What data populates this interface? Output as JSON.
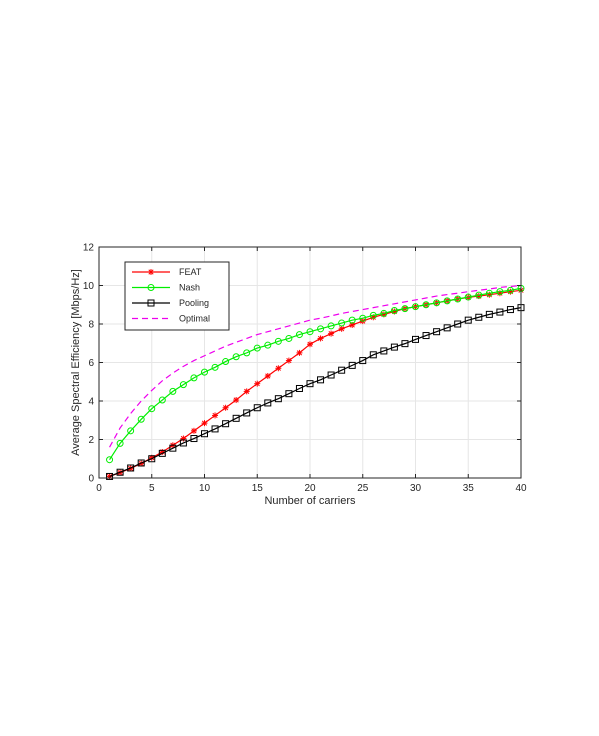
{
  "chart_data": {
    "type": "line",
    "xlabel": "Number of carriers",
    "ylabel": "Average Spectral Efficiency [Mbps/Hz]",
    "xlim": [
      0,
      40
    ],
    "ylim": [
      0,
      12
    ],
    "x_ticks": [
      0,
      5,
      10,
      15,
      20,
      25,
      30,
      35,
      40
    ],
    "y_ticks": [
      0,
      2,
      4,
      6,
      8,
      10,
      12
    ],
    "grid": true,
    "legend_position": "top-left",
    "x": [
      1,
      2,
      3,
      4,
      5,
      6,
      7,
      8,
      9,
      10,
      11,
      12,
      13,
      14,
      15,
      16,
      17,
      18,
      19,
      20,
      21,
      22,
      23,
      24,
      25,
      26,
      27,
      28,
      29,
      30,
      31,
      32,
      33,
      34,
      35,
      36,
      37,
      38,
      39,
      40
    ],
    "series": [
      {
        "name": "FEAT",
        "color": "#ff0000",
        "marker": "asterisk",
        "dash": "solid",
        "values": [
          0.08,
          0.28,
          0.5,
          0.75,
          1.05,
          1.35,
          1.7,
          2.05,
          2.45,
          2.85,
          3.25,
          3.65,
          4.05,
          4.5,
          4.9,
          5.3,
          5.7,
          6.1,
          6.5,
          6.95,
          7.25,
          7.5,
          7.75,
          7.95,
          8.15,
          8.35,
          8.5,
          8.65,
          8.8,
          8.9,
          9.0,
          9.1,
          9.2,
          9.3,
          9.38,
          9.45,
          9.52,
          9.6,
          9.68,
          9.75
        ]
      },
      {
        "name": "Nash",
        "color": "#00ee00",
        "marker": "circle",
        "dash": "solid",
        "values": [
          0.95,
          1.8,
          2.45,
          3.05,
          3.6,
          4.05,
          4.5,
          4.85,
          5.2,
          5.5,
          5.75,
          6.05,
          6.3,
          6.5,
          6.75,
          6.9,
          7.1,
          7.25,
          7.45,
          7.6,
          7.75,
          7.9,
          8.05,
          8.2,
          8.3,
          8.45,
          8.55,
          8.7,
          8.8,
          8.9,
          9.0,
          9.1,
          9.2,
          9.3,
          9.4,
          9.5,
          9.6,
          9.68,
          9.75,
          9.85
        ]
      },
      {
        "name": "Pooling",
        "color": "#000000",
        "marker": "square",
        "dash": "solid",
        "values": [
          0.08,
          0.3,
          0.52,
          0.78,
          1.0,
          1.28,
          1.55,
          1.82,
          2.05,
          2.3,
          2.55,
          2.82,
          3.1,
          3.38,
          3.65,
          3.9,
          4.12,
          4.38,
          4.65,
          4.9,
          5.1,
          5.35,
          5.6,
          5.85,
          6.1,
          6.4,
          6.6,
          6.8,
          6.98,
          7.2,
          7.4,
          7.6,
          7.8,
          8.0,
          8.2,
          8.35,
          8.5,
          8.62,
          8.75,
          8.85
        ]
      },
      {
        "name": "Optimal",
        "color": "#ee00ee",
        "marker": "none",
        "dash": "dashed",
        "values": [
          1.6,
          2.6,
          3.35,
          4.0,
          4.55,
          5.05,
          5.45,
          5.8,
          6.1,
          6.35,
          6.6,
          6.85,
          7.05,
          7.25,
          7.45,
          7.6,
          7.75,
          7.9,
          8.05,
          8.2,
          8.3,
          8.42,
          8.55,
          8.65,
          8.75,
          8.85,
          8.95,
          9.05,
          9.15,
          9.25,
          9.35,
          9.45,
          9.53,
          9.6,
          9.68,
          9.75,
          9.82,
          9.9,
          9.95,
          10.0
        ]
      }
    ]
  }
}
